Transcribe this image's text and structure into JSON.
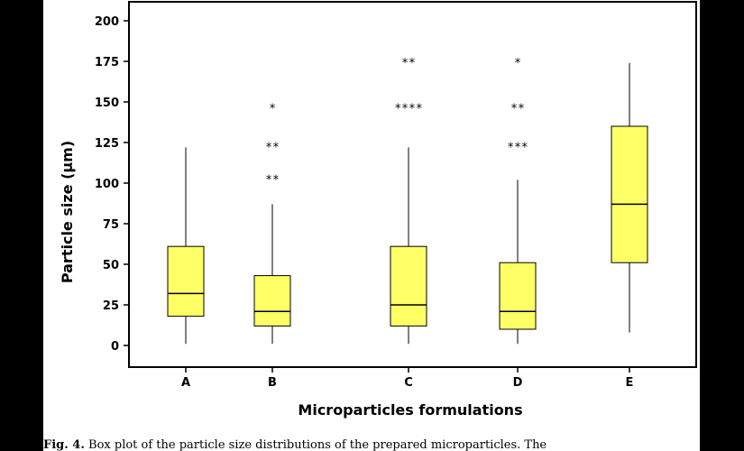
{
  "chart_data": {
    "type": "box",
    "categories": [
      "A",
      "B",
      "C",
      "D",
      "E"
    ],
    "xlabel": "Microparticles formulations",
    "ylabel": "Particle size (µm)",
    "ylim": [
      0,
      200
    ],
    "yticks": [
      0,
      25,
      50,
      75,
      100,
      125,
      150,
      175,
      200
    ],
    "box_color": "#ffff66",
    "grid": false,
    "boxes": [
      {
        "category": "A",
        "whisker_low": 1,
        "q1": 18,
        "median": 32,
        "q3": 61,
        "whisker_high": 122,
        "outliers": []
      },
      {
        "category": "B",
        "whisker_low": 1,
        "q1": 12,
        "median": 21,
        "q3": 43,
        "whisker_high": 87,
        "outliers": [
          {
            "value": 103,
            "count": 2
          },
          {
            "value": 123,
            "count": 2
          },
          {
            "value": 147,
            "count": 1
          }
        ]
      },
      {
        "category": "C",
        "whisker_low": 1,
        "q1": 12,
        "median": 25,
        "q3": 61,
        "whisker_high": 122,
        "outliers": [
          {
            "value": 147,
            "count": 4
          },
          {
            "value": 175,
            "count": 2
          }
        ]
      },
      {
        "category": "D",
        "whisker_low": 1,
        "q1": 10,
        "median": 21,
        "q3": 51,
        "whisker_high": 102,
        "outliers": [
          {
            "value": 123,
            "count": 3
          },
          {
            "value": 147,
            "count": 2
          },
          {
            "value": 175,
            "count": 1
          }
        ]
      },
      {
        "category": "E",
        "whisker_low": 8,
        "q1": 51,
        "median": 87,
        "q3": 135,
        "whisker_high": 174,
        "outliers": []
      }
    ]
  },
  "caption": {
    "label": "Fig. 4.",
    "text": "Box plot of the particle size distributions of the prepared microparticles. The"
  }
}
